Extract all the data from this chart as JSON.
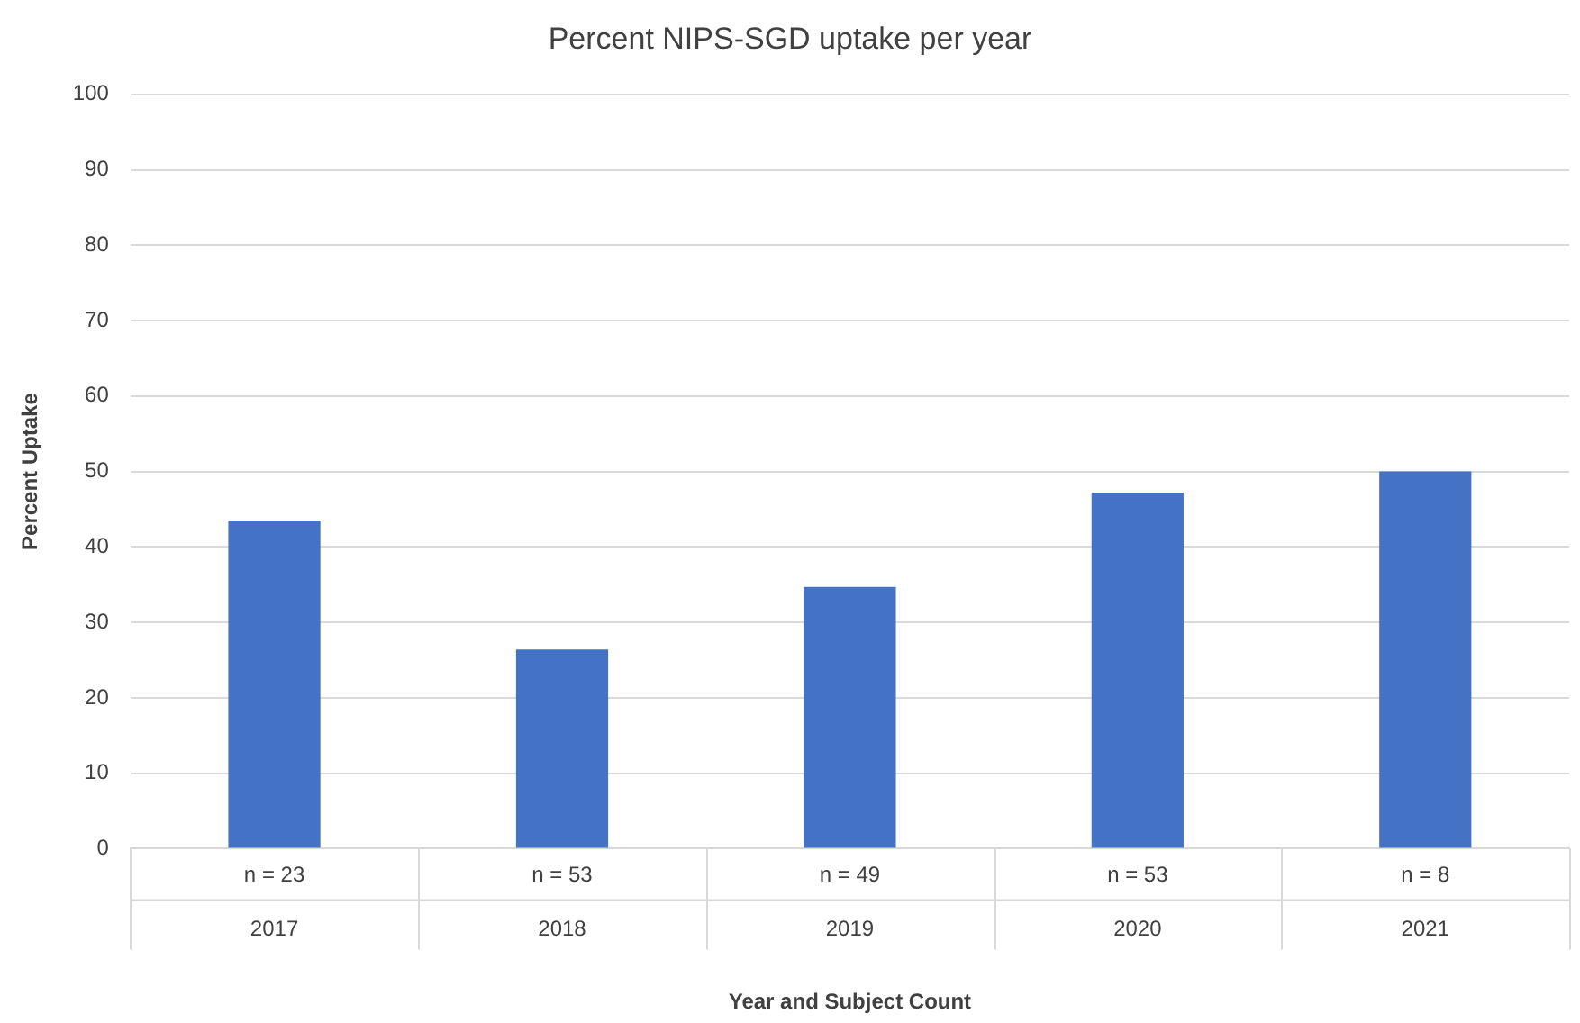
{
  "chart_data": {
    "type": "bar",
    "title": "Percent NIPS-SGD uptake per year",
    "xlabel": "Year and Subject Count",
    "ylabel": "Percent Uptake",
    "categories": [
      "2017",
      "2018",
      "2019",
      "2020",
      "2021"
    ],
    "values": [
      43.5,
      26.4,
      34.7,
      47.2,
      50
    ],
    "color": "#4472c4",
    "ylim": [
      0,
      100
    ],
    "yticks": [
      0,
      10,
      20,
      30,
      40,
      50,
      60,
      70,
      80,
      90,
      100
    ],
    "grid": "y",
    "annotations": [
      "n = 23",
      "n = 53",
      "n = 49",
      "n = 53",
      "n = 8"
    ]
  }
}
